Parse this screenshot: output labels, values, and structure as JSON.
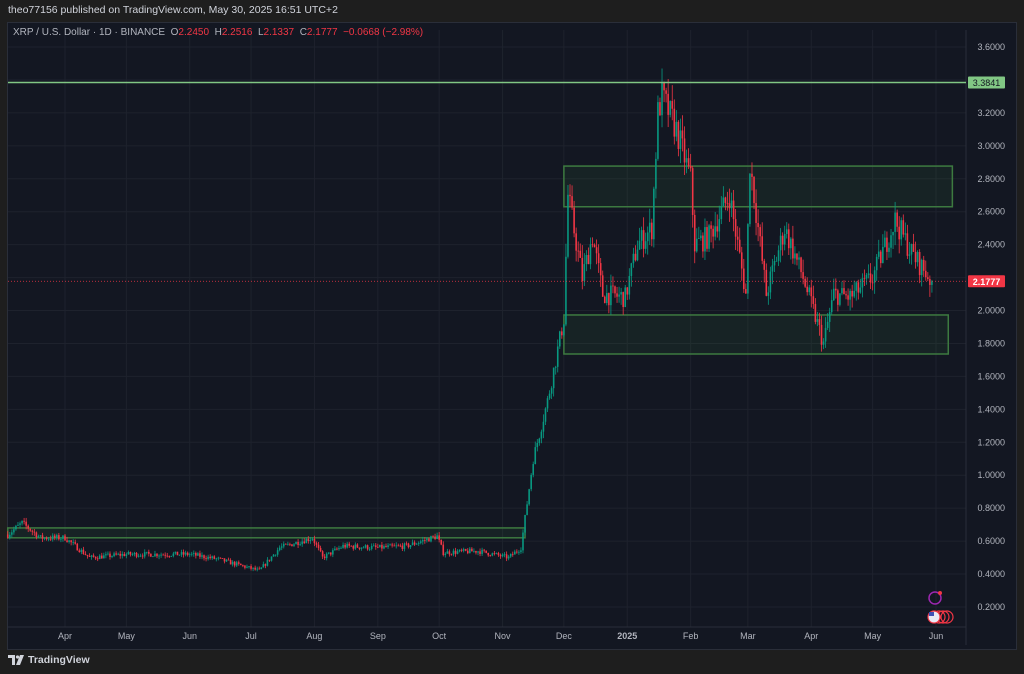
{
  "header": {
    "published": "theo77156 published on TradingView.com, May 30, 2025 16:51 UTC+2"
  },
  "legend": {
    "symbol": "XRP / U.S. Dollar · 1D · BINANCE",
    "o_label": "O",
    "o": "2.2450",
    "h_label": "H",
    "h": "2.2516",
    "l_label": "L",
    "l": "2.1337",
    "c_label": "C",
    "c": "2.1777",
    "change": "−0.0668 (−2.98%)"
  },
  "footer": {
    "brand": "TradingView"
  },
  "colors": {
    "up": "#089981",
    "down": "#f23645",
    "zone": "#4caf50",
    "level": "#81c784",
    "background": "#131722"
  },
  "chart_data": {
    "type": "candlestick",
    "symbol": "XRPUSD",
    "interval": "1D",
    "ylim": [
      0.1,
      3.7
    ],
    "y_ticks": [
      "3.6000",
      "3.2000",
      "3.0000",
      "2.8000",
      "2.6000",
      "2.4000",
      "2.0000",
      "1.8000",
      "1.6000",
      "1.4000",
      "1.2000",
      "1.0000",
      "0.8000",
      "0.6000",
      "0.4000",
      "0.2000"
    ],
    "x_ticks": [
      {
        "label": "Apr",
        "date": "2024-04-01"
      },
      {
        "label": "May",
        "date": "2024-05-01"
      },
      {
        "label": "Jun",
        "date": "2024-06-01"
      },
      {
        "label": "Jul",
        "date": "2024-07-01"
      },
      {
        "label": "Aug",
        "date": "2024-08-01"
      },
      {
        "label": "Sep",
        "date": "2024-09-01"
      },
      {
        "label": "Oct",
        "date": "2024-10-01"
      },
      {
        "label": "Nov",
        "date": "2024-11-01"
      },
      {
        "label": "Dec",
        "date": "2024-12-01"
      },
      {
        "label": "2025",
        "date": "2025-01-01"
      },
      {
        "label": "Feb",
        "date": "2025-02-01"
      },
      {
        "label": "Mar",
        "date": "2025-03-01"
      },
      {
        "label": "Apr",
        "date": "2025-04-01"
      },
      {
        "label": "May",
        "date": "2025-05-01"
      },
      {
        "label": "Jun",
        "date": "2025-06-01"
      }
    ],
    "xlim": [
      "2024-03-04",
      "2025-06-14"
    ],
    "price_path": [
      [
        "2024-03-04",
        0.64
      ],
      [
        "2024-03-11",
        0.71
      ],
      [
        "2024-03-20",
        0.62
      ],
      [
        "2024-04-01",
        0.62
      ],
      [
        "2024-04-13",
        0.5
      ],
      [
        "2024-05-01",
        0.52
      ],
      [
        "2024-06-01",
        0.52
      ],
      [
        "2024-06-15",
        0.49
      ],
      [
        "2024-07-05",
        0.42
      ],
      [
        "2024-07-15",
        0.56
      ],
      [
        "2024-07-31",
        0.62
      ],
      [
        "2024-08-05",
        0.5
      ],
      [
        "2024-08-15",
        0.57
      ],
      [
        "2024-09-01",
        0.56
      ],
      [
        "2024-09-15",
        0.57
      ],
      [
        "2024-09-30",
        0.63
      ],
      [
        "2024-10-03",
        0.53
      ],
      [
        "2024-10-20",
        0.54
      ],
      [
        "2024-11-04",
        0.5
      ],
      [
        "2024-11-10",
        0.56
      ],
      [
        "2024-11-16",
        1.1
      ],
      [
        "2024-11-23",
        1.45
      ],
      [
        "2024-12-01",
        1.95
      ],
      [
        "2024-12-03",
        2.7
      ],
      [
        "2024-12-10",
        2.2
      ],
      [
        "2024-12-15",
        2.45
      ],
      [
        "2024-12-20",
        2.1
      ],
      [
        "2024-12-31",
        2.08
      ],
      [
        "2025-01-06",
        2.4
      ],
      [
        "2025-01-13",
        2.5
      ],
      [
        "2025-01-16",
        3.2
      ],
      [
        "2025-01-18",
        3.3
      ],
      [
        "2025-01-25",
        3.1
      ],
      [
        "2025-02-01",
        2.8
      ],
      [
        "2025-02-03",
        2.4
      ],
      [
        "2025-02-10",
        2.45
      ],
      [
        "2025-02-20",
        2.7
      ],
      [
        "2025-02-28",
        2.1
      ],
      [
        "2025-03-02",
        2.9
      ],
      [
        "2025-03-10",
        2.1
      ],
      [
        "2025-03-19",
        2.5
      ],
      [
        "2025-03-28",
        2.2
      ],
      [
        "2025-04-07",
        1.8
      ],
      [
        "2025-04-12",
        2.1
      ],
      [
        "2025-04-20",
        2.08
      ],
      [
        "2025-05-01",
        2.2
      ],
      [
        "2025-05-12",
        2.55
      ],
      [
        "2025-05-20",
        2.35
      ],
      [
        "2025-05-30",
        2.1777
      ]
    ],
    "zones": [
      {
        "from": "2024-03-04",
        "to": "2024-11-12",
        "top": 0.68,
        "bottom": 0.62
      },
      {
        "from": "2024-12-01",
        "to": "2025-06-09",
        "top": 2.877,
        "bottom": 2.63
      },
      {
        "from": "2024-12-01",
        "to": "2025-06-07",
        "top": 1.973,
        "bottom": 1.736
      }
    ],
    "horizontal_level": {
      "price": 3.3841,
      "label": "3.3841"
    },
    "last_price": {
      "price": 2.1777,
      "label": "2.1777"
    }
  }
}
